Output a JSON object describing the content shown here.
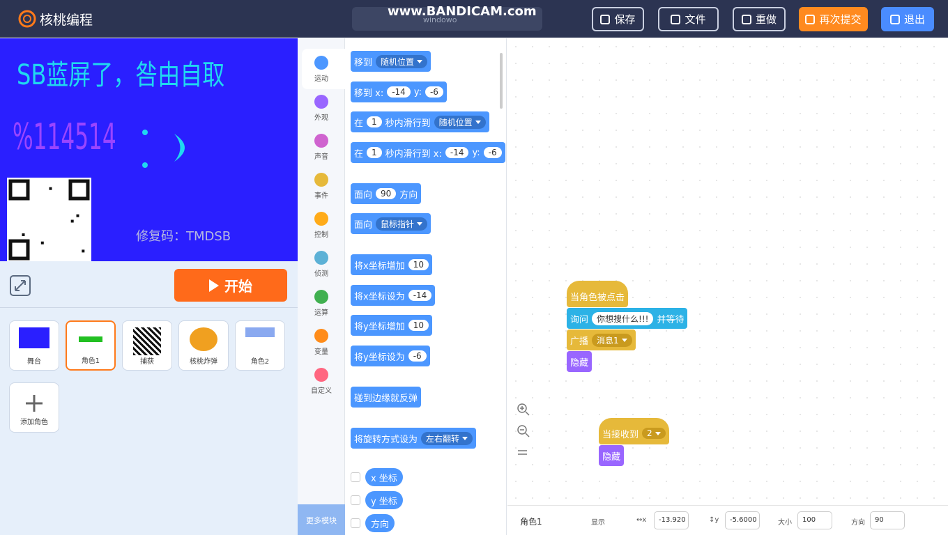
{
  "header": {
    "logo": "核桃编程",
    "watermark": "www.BANDICAM.com",
    "project_name": "windowo",
    "buttons": [
      "保存",
      "文件",
      "重做",
      "再次提交",
      "退出"
    ]
  },
  "stage": {
    "title": "SB蓝屏了，咎由自取",
    "number": "%114514",
    "code": "修复码：TMDSB"
  },
  "start_button": "开始",
  "sprites": [
    "舞台",
    "角色1",
    "捕获",
    "核桃炸弹",
    "角色2"
  ],
  "add_sprite": "添加角色",
  "categories": [
    "运动",
    "外观",
    "声音",
    "事件",
    "控制",
    "侦测",
    "运算",
    "变量",
    "自定义"
  ],
  "more_modules": "更多模块",
  "palette": [
    [
      {
        "text": "移到"
      },
      {
        "dropdown": "随机位置"
      }
    ],
    [
      {
        "text": "移到 x:"
      },
      {
        "input": "-14"
      },
      {
        "text": "y:"
      },
      {
        "input": "-6"
      }
    ],
    [
      {
        "text": "在"
      },
      {
        "input": "1"
      },
      {
        "text": "秒内滑行到"
      },
      {
        "dropdown": "随机位置"
      }
    ],
    [
      {
        "text": "在"
      },
      {
        "input": "1"
      },
      {
        "text": "秒内滑行到 x:"
      },
      {
        "input": "-14"
      },
      {
        "text": "y:"
      },
      {
        "input": "-6"
      }
    ],
    [
      {
        "text": "面向"
      },
      {
        "input": "90"
      },
      {
        "text": "方向"
      }
    ],
    [
      {
        "text": "面向"
      },
      {
        "dropdown": "鼠标指针"
      }
    ],
    [
      {
        "text": "将x坐标增加"
      },
      {
        "input": "10"
      }
    ],
    [
      {
        "text": "将x坐标设为"
      },
      {
        "input": "-14"
      }
    ],
    [
      {
        "text": "将y坐标增加"
      },
      {
        "input": "10"
      }
    ],
    [
      {
        "text": "将y坐标设为"
      },
      {
        "input": "-6"
      }
    ],
    [
      {
        "text": "碰到边缘就反弹"
      }
    ],
    [
      {
        "text": "将旋转方式设为"
      },
      {
        "dropdown": "左右翻转"
      }
    ]
  ],
  "reporters": [
    "x 坐标",
    "y 坐标",
    "方向"
  ],
  "scripts": [
    [
      {
        "kind": "event",
        "parts": [
          {
            "text": "当角色被点击"
          }
        ]
      },
      {
        "kind": "sensing",
        "parts": [
          {
            "text": "询问"
          },
          {
            "input": "你想搜什么!!!"
          },
          {
            "text": "并等待"
          }
        ]
      },
      {
        "kind": "event",
        "parts": [
          {
            "text": "广播"
          },
          {
            "dropdown": "消息1"
          }
        ]
      },
      {
        "kind": "looks",
        "parts": [
          {
            "text": "隐藏"
          }
        ]
      }
    ],
    [
      {
        "kind": "event",
        "parts": [
          {
            "text": "当接收到"
          },
          {
            "dropdown": "2"
          }
        ]
      },
      {
        "kind": "looks",
        "parts": [
          {
            "text": "隐藏"
          }
        ]
      }
    ]
  ],
  "sprite_info": {
    "name": "角色1",
    "show": "显示",
    "x_label": "↔x",
    "x": "-13.920",
    "y_label": "↕y",
    "y": "-5.6000",
    "size_label": "大小",
    "size": "100",
    "direction_label": "方向",
    "direction": "90"
  }
}
